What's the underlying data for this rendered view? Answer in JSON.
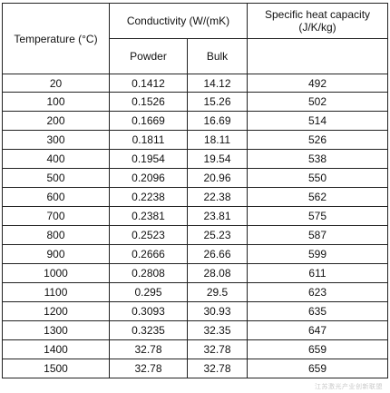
{
  "table": {
    "headers": {
      "temperature": "Temperature (°C)",
      "conductivity": "Conductivity (W/(mK)",
      "powder": "Powder",
      "bulk": "Bulk",
      "heat_capacity": "Specific heat capacity (J/K/kg)"
    },
    "rows": [
      {
        "temperature": "20",
        "powder": "0.1412",
        "bulk": "14.12",
        "heat_capacity": "492"
      },
      {
        "temperature": "100",
        "powder": "0.1526",
        "bulk": "15.26",
        "heat_capacity": "502"
      },
      {
        "temperature": "200",
        "powder": "0.1669",
        "bulk": "16.69",
        "heat_capacity": "514"
      },
      {
        "temperature": "300",
        "powder": "0.1811",
        "bulk": "18.11",
        "heat_capacity": "526"
      },
      {
        "temperature": "400",
        "powder": "0.1954",
        "bulk": "19.54",
        "heat_capacity": "538"
      },
      {
        "temperature": "500",
        "powder": "0.2096",
        "bulk": "20.96",
        "heat_capacity": "550"
      },
      {
        "temperature": "600",
        "powder": "0.2238",
        "bulk": "22.38",
        "heat_capacity": "562"
      },
      {
        "temperature": "700",
        "powder": "0.2381",
        "bulk": "23.81",
        "heat_capacity": "575"
      },
      {
        "temperature": "800",
        "powder": "0.2523",
        "bulk": "25.23",
        "heat_capacity": "587"
      },
      {
        "temperature": "900",
        "powder": "0.2666",
        "bulk": "26.66",
        "heat_capacity": "599"
      },
      {
        "temperature": "1000",
        "powder": "0.2808",
        "bulk": "28.08",
        "heat_capacity": "611"
      },
      {
        "temperature": "1100",
        "powder": "0.295",
        "bulk": "29.5",
        "heat_capacity": "623"
      },
      {
        "temperature": "1200",
        "powder": "0.3093",
        "bulk": "30.93",
        "heat_capacity": "635"
      },
      {
        "temperature": "1300",
        "powder": "0.3235",
        "bulk": "32.35",
        "heat_capacity": "647"
      },
      {
        "temperature": "1400",
        "powder": "32.78",
        "bulk": "32.78",
        "heat_capacity": "659"
      },
      {
        "temperature": "1500",
        "powder": "32.78",
        "bulk": "32.78",
        "heat_capacity": "659"
      }
    ]
  },
  "watermark": "江苏激光产业创新联盟"
}
